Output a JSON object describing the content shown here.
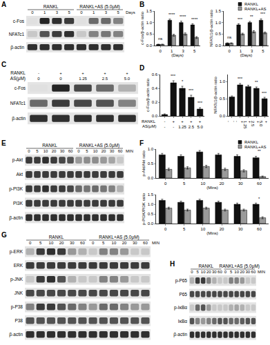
{
  "panel_labels": [
    "A",
    "B",
    "C",
    "D",
    "E",
    "F",
    "G",
    "H"
  ],
  "blots": [
    {
      "groups": [
        {
          "name": "RANKL",
          "lanes": [
            "0",
            "1",
            "3",
            "5"
          ]
        },
        {
          "name": "RANKL+AS (5.0μM)",
          "lanes": [
            "0",
            "1",
            "3",
            "5"
          ]
        }
      ],
      "unit": "Days",
      "rows": [
        {
          "name": "c-Fos",
          "bands": [
            0.1,
            0.9,
            0.85,
            0.8,
            0.1,
            0.6,
            0.6,
            0.5
          ]
        },
        {
          "name": "NFATc1",
          "bands": [
            0.2,
            0.7,
            0.8,
            0.85,
            0.2,
            0.5,
            0.55,
            0.5
          ]
        },
        {
          "name": "β-actin",
          "bands": [
            0.85,
            0.85,
            0.85,
            0.85,
            0.85,
            0.85,
            0.85,
            0.85
          ]
        }
      ]
    },
    {
      "lane_rows": [
        {
          "name": "RANKL",
          "labels": [
            "-",
            "+",
            "+",
            "+",
            "+"
          ]
        },
        {
          "name": "AS(μM)",
          "labels": [
            "0",
            "0",
            "1.25",
            "2.5",
            "5.0"
          ]
        }
      ],
      "rows": [
        {
          "name": "c-Fos",
          "bands": [
            0.1,
            0.9,
            0.75,
            0.6,
            0.3
          ]
        },
        {
          "name": "NFATc1",
          "bands": [
            0.6,
            0.8,
            0.75,
            0.7,
            0.5
          ]
        },
        {
          "name": "β-actin",
          "bands": [
            0.85,
            0.85,
            0.85,
            0.85,
            0.85
          ]
        }
      ]
    },
    {
      "groups": [
        {
          "name": "RANKL",
          "lanes": [
            "0",
            "5",
            "10",
            "20",
            "30",
            "60"
          ]
        },
        {
          "name": "RANKL+AS (5.0μM)",
          "lanes": [
            "0",
            "5",
            "10",
            "20",
            "30",
            "60"
          ]
        }
      ],
      "unit": "MIN",
      "rows": [
        {
          "name": "p-Akt",
          "bands": [
            0.8,
            0.8,
            0.85,
            0.8,
            0.75,
            0.7,
            0.4,
            0.45,
            0.45,
            0.4,
            0.35,
            0.2
          ]
        },
        {
          "name": "Akt",
          "bands": [
            0.8,
            0.8,
            0.8,
            0.8,
            0.8,
            0.8,
            0.8,
            0.8,
            0.8,
            0.8,
            0.8,
            0.8
          ]
        },
        {
          "name": "p-PI3K",
          "bands": [
            0.8,
            0.8,
            0.85,
            0.8,
            0.8,
            0.75,
            0.6,
            0.55,
            0.6,
            0.55,
            0.5,
            0.3
          ]
        },
        {
          "name": "PI3K",
          "bands": [
            0.8,
            0.8,
            0.8,
            0.8,
            0.8,
            0.8,
            0.8,
            0.8,
            0.8,
            0.8,
            0.8,
            0.8
          ]
        },
        {
          "name": "β-actin",
          "bands": [
            0.85,
            0.85,
            0.85,
            0.85,
            0.85,
            0.85,
            0.85,
            0.85,
            0.85,
            0.85,
            0.85,
            0.85
          ]
        }
      ]
    },
    {
      "groups": [
        {
          "name": "RANKL",
          "lanes": [
            "0",
            "5",
            "10",
            "20",
            "30",
            "60"
          ]
        },
        {
          "name": "RANKL+AS (5.0μM)",
          "lanes": [
            "0",
            "5",
            "10",
            "20",
            "30",
            "60"
          ]
        }
      ],
      "unit": "MIN",
      "rows": [
        {
          "name": "p-ERK",
          "bands": [
            0.3,
            0.8,
            0.85,
            0.8,
            0.4,
            0.3,
            0.2,
            0.5,
            0.5,
            0.4,
            0.2,
            0.2
          ]
        },
        {
          "name": "ERK",
          "bands": [
            0.8,
            0.8,
            0.8,
            0.8,
            0.8,
            0.8,
            0.8,
            0.8,
            0.8,
            0.8,
            0.8,
            0.8
          ]
        },
        {
          "name": "p-JNK",
          "bands": [
            0.2,
            0.8,
            0.85,
            0.7,
            0.3,
            0.2,
            0.2,
            0.5,
            0.5,
            0.4,
            0.2,
            0.2
          ]
        },
        {
          "name": "JNK",
          "bands": [
            0.75,
            0.75,
            0.75,
            0.75,
            0.75,
            0.75,
            0.75,
            0.75,
            0.75,
            0.75,
            0.75,
            0.75
          ]
        },
        {
          "name": "p-P38",
          "bands": [
            0.5,
            0.8,
            0.8,
            0.7,
            0.6,
            0.5,
            0.4,
            0.6,
            0.6,
            0.5,
            0.4,
            0.4
          ]
        },
        {
          "name": "P38",
          "bands": [
            0.7,
            0.7,
            0.7,
            0.7,
            0.7,
            0.7,
            0.7,
            0.7,
            0.7,
            0.7,
            0.7,
            0.7
          ]
        },
        {
          "name": "β-actin",
          "bands": [
            0.85,
            0.85,
            0.85,
            0.85,
            0.85,
            0.85,
            0.85,
            0.85,
            0.85,
            0.85,
            0.85,
            0.85
          ]
        }
      ]
    },
    {
      "groups": [
        {
          "name": "RANKL",
          "lanes": [
            "0",
            "5",
            "10",
            "20",
            "30",
            "60"
          ]
        },
        {
          "name": "RANKL+AS (5.0μM)",
          "lanes": [
            "0",
            "5",
            "10",
            "20",
            "30",
            "60"
          ]
        }
      ],
      "unit": "MIN",
      "rows": [
        {
          "name": "p-P65",
          "bands": [
            0.3,
            0.8,
            0.8,
            0.5,
            0.3,
            0.2,
            0.2,
            0.5,
            0.5,
            0.4,
            0.2,
            0.2
          ]
        },
        {
          "name": "P65",
          "bands": [
            0.75,
            0.75,
            0.75,
            0.75,
            0.75,
            0.75,
            0.75,
            0.75,
            0.75,
            0.75,
            0.75,
            0.75
          ]
        },
        {
          "name": "p-IκBα",
          "bands": [
            0.2,
            0.6,
            0.7,
            0.4,
            0.2,
            0.2,
            0.2,
            0.3,
            0.35,
            0.3,
            0.2,
            0.2
          ]
        },
        {
          "name": "IκBα",
          "bands": [
            0.7,
            0.5,
            0.4,
            0.5,
            0.6,
            0.7,
            0.7,
            0.6,
            0.6,
            0.65,
            0.7,
            0.7
          ]
        },
        {
          "name": "β-actin",
          "bands": [
            0.85,
            0.85,
            0.85,
            0.85,
            0.85,
            0.85,
            0.85,
            0.85,
            0.85,
            0.85,
            0.85,
            0.85
          ]
        }
      ]
    }
  ],
  "chart_data": [
    {
      "type": "bar",
      "y_label": "c-Fos/β-actin ratio",
      "x_label": "(Days)",
      "categories": [
        "0",
        "1",
        "3",
        "5"
      ],
      "ylim": [
        0,
        1.5
      ],
      "yticks": [
        {
          "value": 0,
          "label": "0.0"
        },
        0.5,
        {
          "value": 1,
          "label": "1.0"
        },
        1.5
      ],
      "series": [
        {
          "name": "RANKL",
          "color": "#111111",
          "values": [
            0.05,
            1.1,
            1.0,
            0.9
          ],
          "errors": [
            0.01,
            0.05,
            0.06,
            0.05
          ]
        },
        {
          "name": "RANKL+AS",
          "color": "#9a9a9a",
          "values": [
            0.05,
            0.45,
            0.5,
            0.35
          ],
          "errors": [
            0.01,
            0.04,
            0.05,
            0.04
          ]
        }
      ],
      "annotations": [
        {
          "text": "ns",
          "category": "0",
          "y": 0.15
        },
        {
          "text": "****",
          "category": "1",
          "y": 1.2
        },
        {
          "text": "****",
          "category": "3",
          "y": 1.1
        },
        {
          "text": "****",
          "category": "5",
          "y": 1.0
        }
      ]
    },
    {
      "type": "bar",
      "y_label": "NFATc1/β-actin ratio",
      "x_label": "(Days)",
      "categories": [
        "0",
        "1",
        "3",
        "5"
      ],
      "legend": "top right",
      "ylim": [
        0,
        1.5
      ],
      "yticks": [
        {
          "value": 0,
          "label": "0.0"
        },
        0.5,
        {
          "value": 1,
          "label": "1.0"
        },
        1.5
      ],
      "series": [
        {
          "name": "RANKL",
          "color": "#111111",
          "values": [
            0.1,
            0.9,
            1.0,
            1.1
          ],
          "errors": [
            0.02,
            0.05,
            0.05,
            0.06
          ]
        },
        {
          "name": "RANKL+AS",
          "color": "#9a9a9a",
          "values": [
            0.1,
            0.5,
            0.6,
            0.55
          ],
          "errors": [
            0.02,
            0.04,
            0.05,
            0.04
          ]
        }
      ],
      "annotations": [
        {
          "text": "ns",
          "category": "0",
          "y": 0.2
        },
        {
          "text": "***",
          "category": "1",
          "y": 1.0
        },
        {
          "text": "**",
          "category": "3",
          "y": 1.1
        },
        {
          "text": "***",
          "category": "5",
          "y": 1.22
        }
      ]
    },
    {
      "type": "bar",
      "y_label": "c-Fos/β-actin ratio",
      "x_rows": [
        {
          "name": "RANKL",
          "labels": [
            "-",
            "+",
            "+",
            "+",
            "+"
          ]
        },
        {
          "name": "AS(μM)",
          "labels": [
            "-",
            "-",
            "1.25",
            "2.5",
            "5.0"
          ]
        }
      ],
      "ylim": [
        0,
        0.6
      ],
      "yticks": [
        {
          "value": 0,
          "label": "0.0"
        },
        0.2,
        0.4,
        0.6
      ],
      "series": [
        {
          "color": "#111111",
          "values": [
            0.02,
            0.48,
            0.4,
            0.27,
            0.1
          ],
          "errors": [
            0.01,
            0.03,
            0.03,
            0.03,
            0.02
          ]
        }
      ],
      "annotations": [
        {
          "text": "***",
          "position": 1,
          "y": 0.53
        },
        {
          "text": "*",
          "position": 2,
          "y": 0.45
        },
        {
          "text": "***",
          "position": 3,
          "y": 0.32
        },
        {
          "text": "***",
          "position": 4,
          "y": 0.14
        }
      ]
    },
    {
      "type": "bar",
      "y_label": "NFATc1/β-actin ratio",
      "x_rows": [
        {
          "labels": [
            "-",
            "+",
            "+",
            "+",
            "+"
          ]
        },
        {
          "labels": [
            "-",
            "-",
            "1.25",
            "2.5",
            "5.0"
          ]
        }
      ],
      "ylim": [
        0,
        1.2
      ],
      "yticks": [
        {
          "value": 0,
          "label": "0.0"
        },
        0.5,
        {
          "value": 1,
          "label": "1.0"
        }
      ],
      "series": [
        {
          "color": "#111111",
          "values": [
            0.55,
            0.9,
            0.85,
            0.8,
            0.5
          ],
          "errors": [
            0.03,
            0.04,
            0.04,
            0.04,
            0.04
          ]
        }
      ],
      "annotations": [
        {
          "text": "***",
          "position": 1,
          "y": 0.97
        },
        {
          "text": "**",
          "position": 3,
          "y": 0.87
        },
        {
          "text": "***",
          "position": 4,
          "y": 0.57
        }
      ]
    },
    {
      "type": "bar",
      "y_label": "p-Akt/Akt ratio",
      "x_label": "(Mins)",
      "categories": [
        "0",
        "5",
        "10",
        "20",
        "30",
        "60"
      ],
      "legend": "top right",
      "ylim": [
        0,
        1.0
      ],
      "yticks": [
        {
          "value": 0,
          "label": "0.0"
        },
        0.5,
        {
          "value": 1,
          "label": "1.0"
        }
      ],
      "series": [
        {
          "name": "RANKL",
          "color": "#111111",
          "values": [
            0.8,
            0.75,
            0.9,
            0.8,
            0.75,
            0.7
          ],
          "errors": [
            0.05,
            0.05,
            0.05,
            0.05,
            0.05,
            0.05
          ]
        },
        {
          "name": "RANKL+AS",
          "color": "#9a9a9a",
          "values": [
            0.3,
            0.35,
            0.4,
            0.3,
            0.25,
            0.05
          ],
          "errors": [
            0.04,
            0.04,
            0.04,
            0.04,
            0.04,
            0.02
          ]
        }
      ],
      "annotations": [
        {
          "text": "**",
          "category": "60",
          "y": 0.82
        }
      ]
    },
    {
      "type": "bar",
      "y_label": "p-PI3K/PI3K ratio",
      "x_label": "(Mins)",
      "categories": [
        "0",
        "5",
        "10",
        "20",
        "30",
        "60"
      ],
      "ylim": [
        0,
        1.5
      ],
      "yticks": [
        {
          "value": 0,
          "label": "0.0"
        },
        0.5,
        {
          "value": 1,
          "label": "1.0"
        },
        1.5
      ],
      "series": [
        {
          "name": "RANKL",
          "color": "#111111",
          "values": [
            1.2,
            1.1,
            1.2,
            1.1,
            1.0,
            1.0
          ],
          "errors": [
            0.06,
            0.06,
            0.06,
            0.06,
            0.06,
            0.06
          ]
        },
        {
          "name": "RANKL+AS",
          "color": "#9a9a9a",
          "values": [
            0.8,
            0.7,
            0.8,
            0.7,
            0.7,
            0.3
          ],
          "errors": [
            0.05,
            0.05,
            0.05,
            0.05,
            0.05,
            0.05
          ]
        }
      ],
      "annotations": [
        {
          "text": "*",
          "category": "60",
          "y": 1.1
        }
      ]
    }
  ]
}
